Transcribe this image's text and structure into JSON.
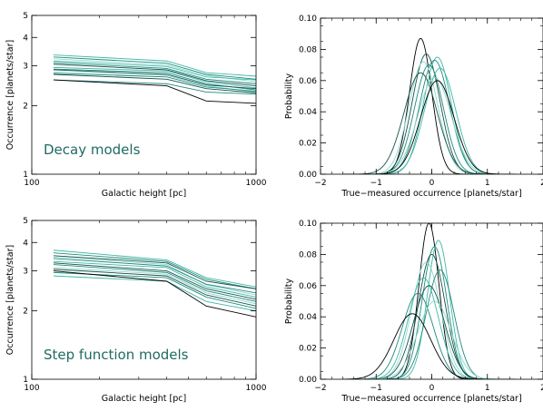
{
  "colors": {
    "black": "#000000",
    "dark_teal": "#14524a",
    "teal": "#1f8a7e",
    "light_teal": "#3db8a6",
    "pale_teal": "#8fd8cc",
    "annotation": "#1f6b62"
  },
  "chart_data": [
    {
      "type": "line",
      "panel": "top-left",
      "xlabel": "Galactic height [pc]",
      "ylabel": "Occurrence [planets/star]",
      "annotation": "Decay models",
      "xscale": "log",
      "yscale": "log",
      "xlim": [
        100,
        1000
      ],
      "ylim": [
        1,
        5
      ],
      "x_ticks": [
        {
          "v": 100,
          "label": "100"
        },
        {
          "v": 1000,
          "label": "1000"
        }
      ],
      "y_ticks": [
        {
          "v": 1,
          "label": "1"
        },
        {
          "v": 2,
          "label": "2"
        },
        {
          "v": 3,
          "label": "3"
        },
        {
          "v": 4,
          "label": "4"
        },
        {
          "v": 5,
          "label": "5"
        }
      ],
      "x": [
        125,
        400,
        600,
        1000
      ],
      "series": [
        {
          "values": [
            3.35,
            3.15,
            2.8,
            2.7
          ],
          "color": "light_teal"
        },
        {
          "values": [
            3.28,
            3.08,
            2.75,
            2.62
          ],
          "color": "teal"
        },
        {
          "values": [
            3.22,
            3.02,
            2.72,
            2.55
          ],
          "color": "pale_teal"
        },
        {
          "values": [
            3.15,
            2.98,
            2.68,
            2.6
          ],
          "color": "light_teal"
        },
        {
          "values": [
            3.1,
            2.92,
            2.62,
            2.5
          ],
          "color": "teal"
        },
        {
          "values": [
            3.05,
            2.88,
            2.58,
            2.45
          ],
          "color": "dark_teal"
        },
        {
          "values": [
            2.95,
            2.85,
            2.55,
            2.4
          ],
          "color": "light_teal"
        },
        {
          "values": [
            2.9,
            2.8,
            2.5,
            2.35
          ],
          "color": "teal"
        },
        {
          "values": [
            2.88,
            2.75,
            2.47,
            2.38
          ],
          "color": "dark_teal"
        },
        {
          "values": [
            2.82,
            2.72,
            2.45,
            2.3
          ],
          "color": "pale_teal"
        },
        {
          "values": [
            2.78,
            2.68,
            2.42,
            2.32
          ],
          "color": "teal"
        },
        {
          "values": [
            2.75,
            2.62,
            2.38,
            2.28
          ],
          "color": "dark_teal"
        },
        {
          "values": [
            2.6,
            2.5,
            2.3,
            2.25
          ],
          "color": "teal"
        },
        {
          "values": [
            2.6,
            2.45,
            2.1,
            2.05
          ],
          "color": "black"
        }
      ]
    },
    {
      "type": "line",
      "panel": "top-right",
      "xlabel": "True−measured occurrence [planets/star]",
      "ylabel": "Probability",
      "xlim": [
        -2,
        2
      ],
      "ylim": [
        0,
        0.1
      ],
      "x_ticks": [
        {
          "v": -2,
          "label": "−2"
        },
        {
          "v": -1,
          "label": "−1"
        },
        {
          "v": 0,
          "label": "0"
        },
        {
          "v": 1,
          "label": "1"
        },
        {
          "v": 2,
          "label": "2"
        }
      ],
      "y_ticks": [
        {
          "v": 0,
          "label": "0.00"
        },
        {
          "v": 0.02,
          "label": "0.02"
        },
        {
          "v": 0.04,
          "label": "0.04"
        },
        {
          "v": 0.06,
          "label": "0.06"
        },
        {
          "v": 0.08,
          "label": "0.08"
        },
        {
          "v": 0.1,
          "label": "0.10"
        }
      ],
      "series": [
        {
          "mu": -0.2,
          "sigma": 0.2,
          "amp": 0.087,
          "color": "black"
        },
        {
          "mu": -0.1,
          "sigma": 0.25,
          "amp": 0.077,
          "color": "dark_teal"
        },
        {
          "mu": 0.1,
          "sigma": 0.25,
          "amp": 0.075,
          "color": "light_teal"
        },
        {
          "mu": 0.05,
          "sigma": 0.27,
          "amp": 0.073,
          "color": "teal"
        },
        {
          "mu": -0.15,
          "sigma": 0.26,
          "amp": 0.072,
          "color": "pale_teal"
        },
        {
          "mu": -0.05,
          "sigma": 0.26,
          "amp": 0.07,
          "color": "teal"
        },
        {
          "mu": 0.15,
          "sigma": 0.28,
          "amp": 0.068,
          "color": "light_teal"
        },
        {
          "mu": -0.2,
          "sigma": 0.3,
          "amp": 0.065,
          "color": "dark_teal"
        },
        {
          "mu": 0.05,
          "sigma": 0.3,
          "amp": 0.062,
          "color": "pale_teal"
        },
        {
          "mu": 0.1,
          "sigma": 0.3,
          "amp": 0.06,
          "color": "black"
        }
      ]
    },
    {
      "type": "line",
      "panel": "bottom-left",
      "xlabel": "Galactic height [pc]",
      "ylabel": "Occurrence [planets/star]",
      "annotation": "Step function models",
      "xscale": "log",
      "yscale": "log",
      "xlim": [
        100,
        1000
      ],
      "ylim": [
        1,
        5
      ],
      "x_ticks": [
        {
          "v": 100,
          "label": "100"
        },
        {
          "v": 1000,
          "label": "1000"
        }
      ],
      "y_ticks": [
        {
          "v": 1,
          "label": "1"
        },
        {
          "v": 2,
          "label": "2"
        },
        {
          "v": 3,
          "label": "3"
        },
        {
          "v": 4,
          "label": "4"
        },
        {
          "v": 5,
          "label": "5"
        }
      ],
      "x": [
        125,
        400,
        600,
        1000
      ],
      "series": [
        {
          "values": [
            3.7,
            3.35,
            2.8,
            2.55
          ],
          "color": "light_teal"
        },
        {
          "values": [
            3.6,
            3.3,
            2.75,
            2.5
          ],
          "color": "teal"
        },
        {
          "values": [
            3.5,
            3.25,
            2.7,
            2.5
          ],
          "color": "dark_teal"
        },
        {
          "values": [
            3.45,
            3.2,
            2.6,
            2.35
          ],
          "color": "pale_teal"
        },
        {
          "values": [
            3.4,
            3.15,
            2.62,
            2.4
          ],
          "color": "teal"
        },
        {
          "values": [
            3.3,
            3.1,
            2.55,
            2.3
          ],
          "color": "light_teal"
        },
        {
          "values": [
            3.25,
            3.0,
            2.5,
            2.25
          ],
          "color": "dark_teal"
        },
        {
          "values": [
            3.2,
            2.95,
            2.45,
            2.2
          ],
          "color": "teal"
        },
        {
          "values": [
            3.1,
            2.9,
            2.4,
            2.15
          ],
          "color": "pale_teal"
        },
        {
          "values": [
            3.05,
            2.85,
            2.35,
            2.1
          ],
          "color": "dark_teal"
        },
        {
          "values": [
            2.95,
            2.8,
            2.3,
            2.05
          ],
          "color": "teal"
        },
        {
          "values": [
            2.85,
            2.7,
            2.2,
            2.0
          ],
          "color": "light_teal"
        },
        {
          "values": [
            3.0,
            2.7,
            2.1,
            1.88
          ],
          "color": "black"
        }
      ]
    },
    {
      "type": "line",
      "panel": "bottom-right",
      "xlabel": "True−measured occurrence [planets/star]",
      "ylabel": "Probability",
      "xlim": [
        -2,
        2
      ],
      "ylim": [
        0,
        0.1
      ],
      "x_ticks": [
        {
          "v": -2,
          "label": "−2"
        },
        {
          "v": -1,
          "label": "−1"
        },
        {
          "v": 0,
          "label": "0"
        },
        {
          "v": 1,
          "label": "1"
        },
        {
          "v": 2,
          "label": "2"
        }
      ],
      "y_ticks": [
        {
          "v": 0,
          "label": "0.00"
        },
        {
          "v": 0.02,
          "label": "0.02"
        },
        {
          "v": 0.04,
          "label": "0.04"
        },
        {
          "v": 0.06,
          "label": "0.06"
        },
        {
          "v": 0.08,
          "label": "0.08"
        },
        {
          "v": 0.1,
          "label": "0.10"
        }
      ],
      "series": [
        {
          "mu": -0.05,
          "sigma": 0.18,
          "amp": 0.1,
          "color": "black"
        },
        {
          "mu": 0.12,
          "sigma": 0.2,
          "amp": 0.089,
          "color": "light_teal"
        },
        {
          "mu": 0.05,
          "sigma": 0.22,
          "amp": 0.085,
          "color": "teal"
        },
        {
          "mu": 0.0,
          "sigma": 0.24,
          "amp": 0.08,
          "color": "dark_teal"
        },
        {
          "mu": -0.1,
          "sigma": 0.26,
          "amp": 0.075,
          "color": "pale_teal"
        },
        {
          "mu": 0.15,
          "sigma": 0.25,
          "amp": 0.07,
          "color": "teal"
        },
        {
          "mu": -0.15,
          "sigma": 0.27,
          "amp": 0.065,
          "color": "light_teal"
        },
        {
          "mu": -0.05,
          "sigma": 0.28,
          "amp": 0.06,
          "color": "dark_teal"
        },
        {
          "mu": -0.25,
          "sigma": 0.28,
          "amp": 0.055,
          "color": "teal"
        },
        {
          "mu": 0.05,
          "sigma": 0.3,
          "amp": 0.05,
          "color": "pale_teal"
        },
        {
          "mu": -0.35,
          "sigma": 0.33,
          "amp": 0.042,
          "color": "black"
        }
      ]
    }
  ]
}
